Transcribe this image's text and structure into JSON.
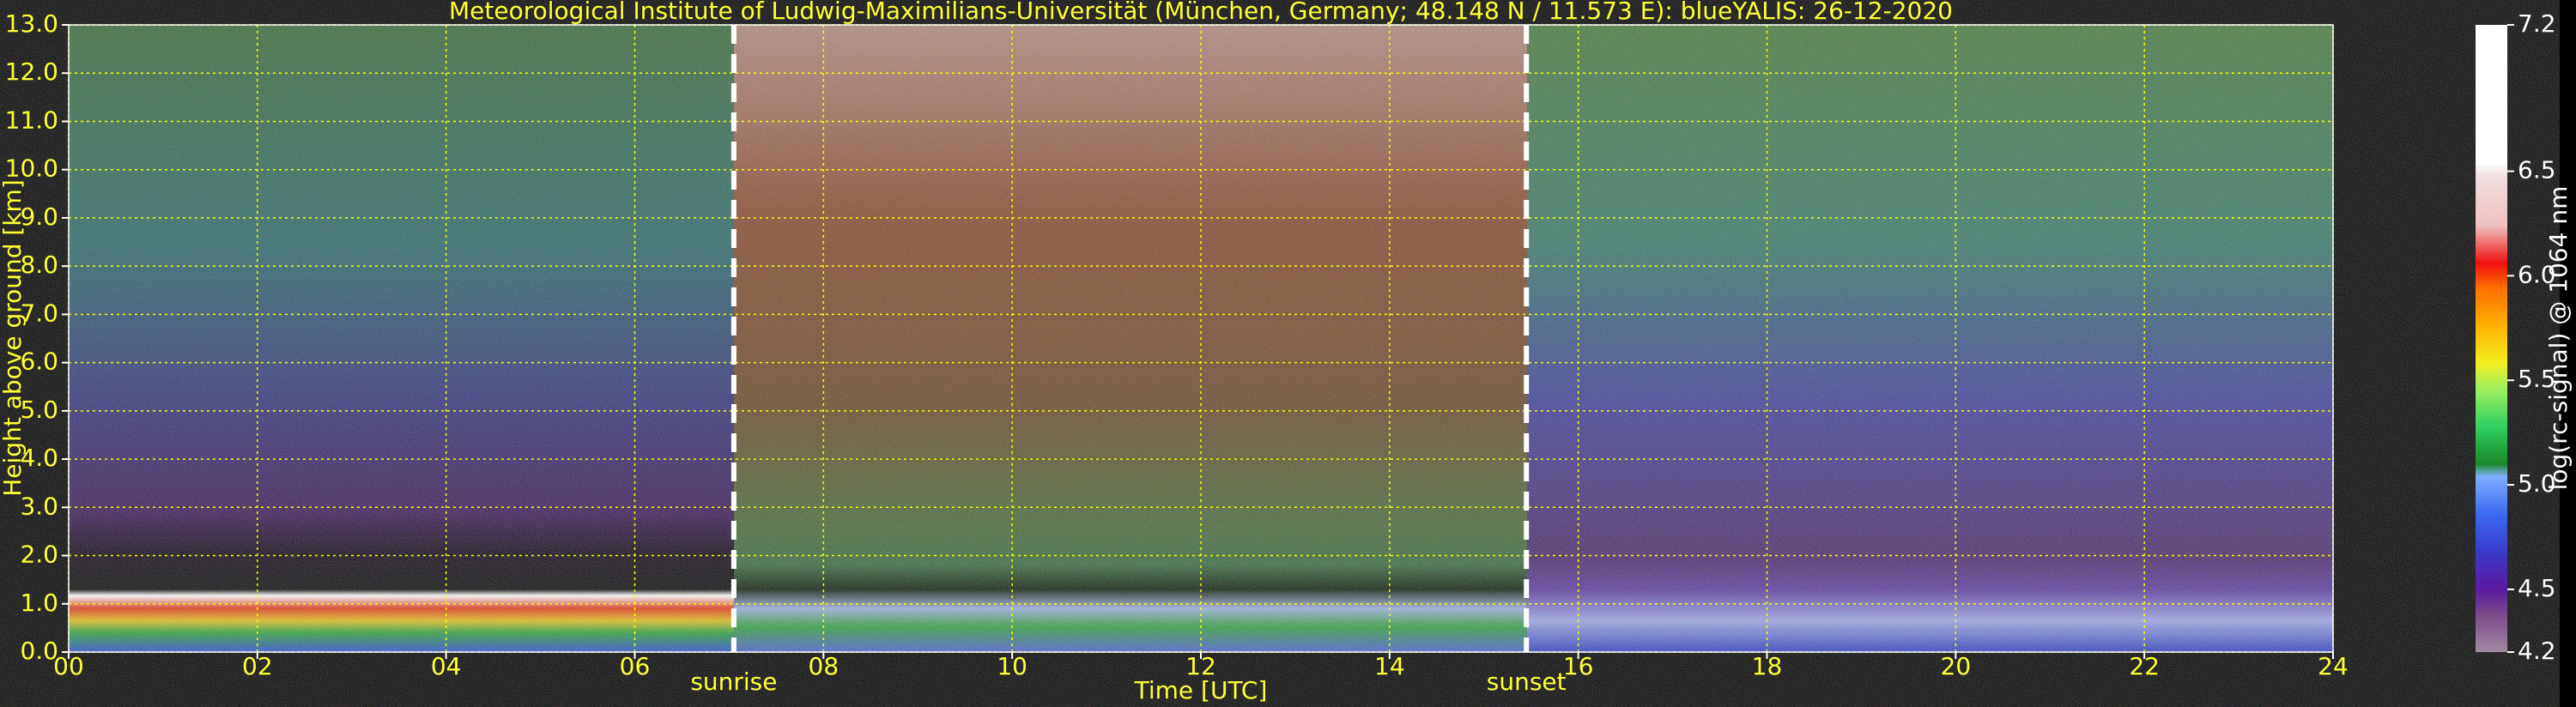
{
  "chart_data": {
    "type": "heatmap",
    "title": "Meteorological Institute of Ludwig-Maximilians-Universität (München, Germany; 48.148 N / 11.573 E):    blueYALIS: 26-12-2020",
    "xlabel": "Time [UTC]",
    "ylabel": "Height above ground [km]",
    "xlim": [
      0,
      24
    ],
    "xticks": [
      {
        "value": 0,
        "label": "00"
      },
      {
        "value": 2,
        "label": "02"
      },
      {
        "value": 4,
        "label": "04"
      },
      {
        "value": 6,
        "label": "06"
      },
      {
        "value": 8,
        "label": "08"
      },
      10,
      12,
      14,
      16,
      18,
      20,
      22,
      24
    ],
    "ylim": [
      0,
      13
    ],
    "yticks": [
      {
        "value": 0,
        "label": "0.0"
      },
      {
        "value": 1,
        "label": "1.0"
      },
      {
        "value": 2,
        "label": "2.0"
      },
      {
        "value": 3,
        "label": "3.0"
      },
      {
        "value": 4,
        "label": "4.0"
      },
      {
        "value": 5,
        "label": "5.0"
      },
      {
        "value": 6,
        "label": "6.0"
      },
      {
        "value": 7,
        "label": "7.0"
      },
      {
        "value": 8,
        "label": "8.0"
      },
      {
        "value": 9,
        "label": "9.0"
      },
      {
        "value": 10,
        "label": "10.0"
      },
      {
        "value": 11,
        "label": "11.0"
      },
      {
        "value": 12,
        "label": "12.0"
      },
      {
        "value": 13,
        "label": "13.0"
      }
    ],
    "grid": true,
    "grid_color": "#ffff00",
    "annotations": [
      {
        "text": "sunrise",
        "x": 7.05
      },
      {
        "text": "sunset",
        "x": 15.45
      }
    ],
    "colorbar": {
      "label": "log(rc-signal) @ 1064 nm",
      "lim": [
        4.2,
        7.2
      ],
      "ticks": [
        4.2,
        4.5,
        {
          "value": 5,
          "label": "5.0"
        },
        5.5,
        {
          "value": 6,
          "label": "6.0"
        },
        6.5,
        7.2
      ]
    }
  }
}
